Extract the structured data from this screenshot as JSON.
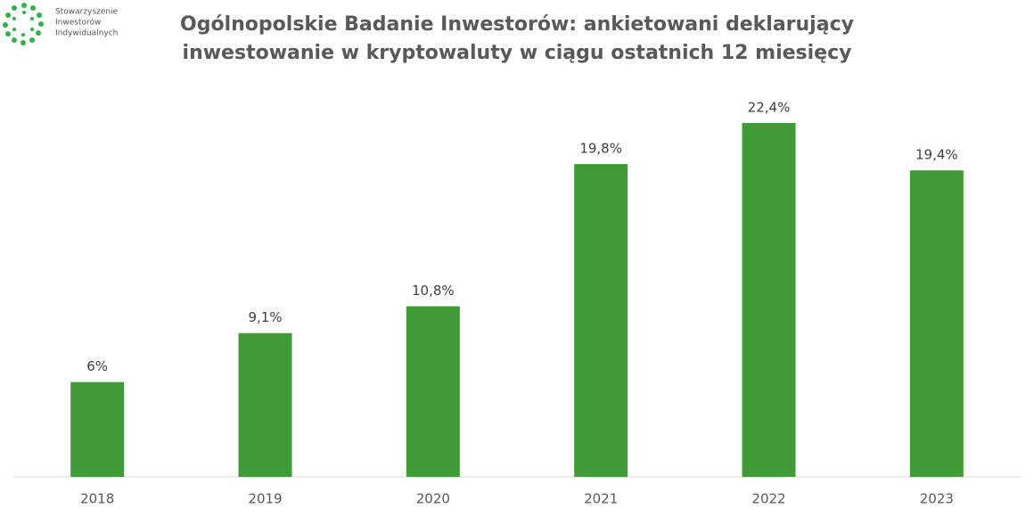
{
  "logo": {
    "lines": [
      "Stowarzyszenie",
      "Inwestorów",
      "Indywidualnych"
    ]
  },
  "chart_data": {
    "type": "bar",
    "title": "Ogólnopolskie Badanie Inwestorów: ankietowani deklarujący inwestowanie w kryptowaluty w ciągu ostatnich 12 miesięcy",
    "categories": [
      "2018",
      "2019",
      "2020",
      "2021",
      "2022",
      "2023"
    ],
    "values": [
      6,
      9.1,
      10.8,
      19.8,
      22.4,
      19.4
    ],
    "value_labels": [
      "6%",
      "9,1%",
      "10,8%",
      "19,8%",
      "22,4%",
      "19,4%"
    ],
    "color": "#3e9b35",
    "grid": false
  }
}
